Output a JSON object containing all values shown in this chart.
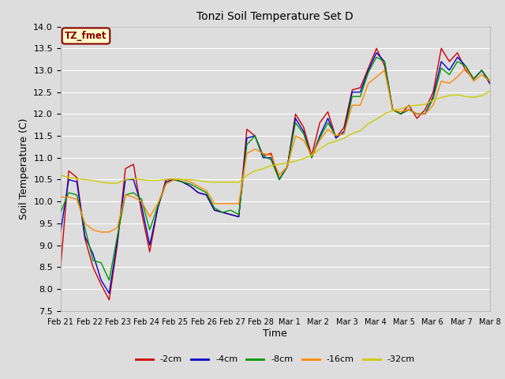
{
  "title": "Tonzi Soil Temperature Set D",
  "xlabel": "Time",
  "ylabel": "Soil Temperature (C)",
  "ylim": [
    7.5,
    14.0
  ],
  "legend_label": "TZ_fmet",
  "series_labels": [
    "-2cm",
    "-4cm",
    "-8cm",
    "-16cm",
    "-32cm"
  ],
  "series_colors": [
    "#cc0000",
    "#0000cc",
    "#009900",
    "#ff8800",
    "#cccc00"
  ],
  "x_tick_labels": [
    "Feb 21",
    "Feb 22",
    "Feb 23",
    "Feb 24",
    "Feb 25",
    "Feb 26",
    "Feb 27",
    "Feb 28",
    "Mar 1",
    "Mar 2",
    "Mar 3",
    "Mar 4",
    "Mar 5",
    "Mar 6",
    "Mar 7",
    "Mar 8"
  ],
  "background_color": "#dddddd",
  "grid_color": "#ffffff",
  "series": {
    "-2cm": [
      8.5,
      10.7,
      10.55,
      9.15,
      8.5,
      8.1,
      7.75,
      9.0,
      10.75,
      10.85,
      9.75,
      8.85,
      9.85,
      10.5,
      10.5,
      10.45,
      10.35,
      10.2,
      10.15,
      9.8,
      9.75,
      9.7,
      9.65,
      11.65,
      11.5,
      11.05,
      11.1,
      10.5,
      10.8,
      12.0,
      11.7,
      11.05,
      11.8,
      12.05,
      11.45,
      11.7,
      12.55,
      12.6,
      13.05,
      13.5,
      13.1,
      12.1,
      12.0,
      12.2,
      11.9,
      12.1,
      12.5,
      13.5,
      13.2,
      13.4,
      13.0,
      12.8,
      13.0,
      12.7
    ],
    "-4cm": [
      9.3,
      10.5,
      10.45,
      9.2,
      8.8,
      8.2,
      7.9,
      9.1,
      10.5,
      10.5,
      9.9,
      9.0,
      9.85,
      10.45,
      10.5,
      10.45,
      10.35,
      10.2,
      10.15,
      9.8,
      9.75,
      9.7,
      9.65,
      11.45,
      11.5,
      11.0,
      11.0,
      10.5,
      10.8,
      11.9,
      11.6,
      11.0,
      11.5,
      11.9,
      11.45,
      11.6,
      12.5,
      12.5,
      13.0,
      13.4,
      13.2,
      12.1,
      12.0,
      12.1,
      12.0,
      12.0,
      12.4,
      13.2,
      13.0,
      13.3,
      13.1,
      12.8,
      13.0,
      12.7
    ],
    "-8cm": [
      9.75,
      10.2,
      10.15,
      9.4,
      8.65,
      8.6,
      8.2,
      9.2,
      10.15,
      10.2,
      10.05,
      9.35,
      9.9,
      10.4,
      10.5,
      10.45,
      10.4,
      10.3,
      10.2,
      9.85,
      9.75,
      9.8,
      9.7,
      11.3,
      11.5,
      11.05,
      10.95,
      10.5,
      10.8,
      11.8,
      11.55,
      11.0,
      11.45,
      11.8,
      11.5,
      11.55,
      12.4,
      12.4,
      12.95,
      13.3,
      13.2,
      12.1,
      12.0,
      12.1,
      12.0,
      12.0,
      12.35,
      13.05,
      12.9,
      13.2,
      13.1,
      12.8,
      13.0,
      12.75
    ],
    "-16cm": [
      10.1,
      10.1,
      10.05,
      9.5,
      9.35,
      9.3,
      9.3,
      9.4,
      10.15,
      10.1,
      10.0,
      9.65,
      9.95,
      10.4,
      10.5,
      10.5,
      10.45,
      10.35,
      10.25,
      9.95,
      9.95,
      9.95,
      9.95,
      11.1,
      11.2,
      11.1,
      11.05,
      10.6,
      10.8,
      11.5,
      11.4,
      11.05,
      11.4,
      11.65,
      11.5,
      11.55,
      12.2,
      12.2,
      12.7,
      12.85,
      13.0,
      12.1,
      12.05,
      12.1,
      12.0,
      12.0,
      12.2,
      12.75,
      12.7,
      12.85,
      13.05,
      12.75,
      12.9,
      12.75
    ],
    "-32cm": [
      10.6,
      10.55,
      10.52,
      10.5,
      10.48,
      10.44,
      10.42,
      10.42,
      10.5,
      10.52,
      10.5,
      10.48,
      10.48,
      10.5,
      10.52,
      10.5,
      10.5,
      10.48,
      10.45,
      10.44,
      10.44,
      10.44,
      10.44,
      10.6,
      10.7,
      10.75,
      10.82,
      10.85,
      10.88,
      10.92,
      10.98,
      11.05,
      11.2,
      11.32,
      11.38,
      11.45,
      11.55,
      11.62,
      11.78,
      11.88,
      12.0,
      12.08,
      12.12,
      12.18,
      12.2,
      12.22,
      12.32,
      12.38,
      12.42,
      12.44,
      12.4,
      12.38,
      12.42,
      12.52
    ]
  }
}
